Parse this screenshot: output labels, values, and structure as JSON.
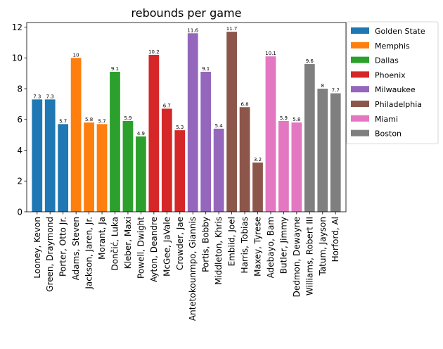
{
  "chart_data": {
    "type": "bar",
    "title": "rebounds per game",
    "xlabel": "",
    "ylabel": "",
    "ylim": [
      0,
      12.3
    ],
    "yticks": [
      0,
      2,
      4,
      6,
      8,
      10,
      12
    ],
    "grid": false,
    "legend_position": "outside-top-right",
    "categories": [
      "Looney, Kevon",
      "Green, Draymond",
      "Porter, Otto Jr.",
      "Adams, Steven",
      "Jackson, Jaren, Jr.",
      "Morant, Ja",
      "Dončić, Luka",
      "Kleber, Maxi",
      "Powell, Dwight",
      "Ayton, Deandre",
      "McGee, JaVale",
      "Crowder, Jae",
      "Antetokounmpo, Giannis",
      "Portis, Bobby",
      "Middleton, Khris",
      "Embiid, Joel",
      "Harris, Tobias",
      "Maxey, Tyrese",
      "Adebayo, Bam",
      "Butler, Jimmy",
      "Dedmon, Dewayne",
      "Williams, Robert III",
      "Tatum, Jayson",
      "Horford, Al"
    ],
    "values": [
      7.3,
      7.3,
      5.7,
      10,
      5.8,
      5.7,
      9.1,
      5.9,
      4.9,
      10.2,
      6.7,
      5.3,
      11.6,
      9.1,
      5.4,
      11.7,
      6.8,
      3.2,
      10.1,
      5.9,
      5.8,
      9.6,
      8,
      7.7
    ],
    "value_labels": [
      "7.3",
      "7.3",
      "5.7",
      "10",
      "5.8",
      "5.7",
      "9.1",
      "5.9",
      "4.9",
      "10.2",
      "6.7",
      "5.3",
      "11.6",
      "9.1",
      "5.4",
      "11.7",
      "6.8",
      "3.2",
      "10.1",
      "5.9",
      "5.8",
      "9.6",
      "8",
      "7.7"
    ],
    "teams": [
      "Golden State",
      "Golden State",
      "Golden State",
      "Memphis",
      "Memphis",
      "Memphis",
      "Dallas",
      "Dallas",
      "Dallas",
      "Phoenix",
      "Phoenix",
      "Phoenix",
      "Milwaukee",
      "Milwaukee",
      "Milwaukee",
      "Philadelphia",
      "Philadelphia",
      "Philadelphia",
      "Miami",
      "Miami",
      "Miami",
      "Boston",
      "Boston",
      "Boston"
    ],
    "series": [
      {
        "name": "Golden State",
        "color": "#1f77b4"
      },
      {
        "name": "Memphis",
        "color": "#ff7f0e"
      },
      {
        "name": "Dallas",
        "color": "#2ca02c"
      },
      {
        "name": "Phoenix",
        "color": "#d62728"
      },
      {
        "name": "Milwaukee",
        "color": "#9467bd"
      },
      {
        "name": "Philadelphia",
        "color": "#8c564b"
      },
      {
        "name": "Miami",
        "color": "#e377c2"
      },
      {
        "name": "Boston",
        "color": "#7f7f7f"
      }
    ]
  }
}
